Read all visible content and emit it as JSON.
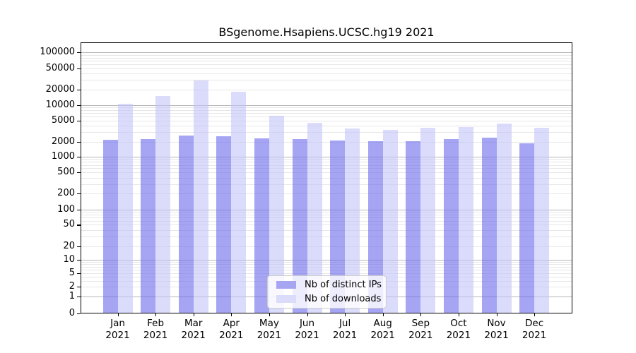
{
  "chart_data": {
    "type": "bar",
    "title": "BSgenome.Hsapiens.UCSC.hg19 2021",
    "year": "2021",
    "categories": [
      "Jan",
      "Feb",
      "Mar",
      "Apr",
      "May",
      "Jun",
      "Jul",
      "Aug",
      "Sep",
      "Oct",
      "Nov",
      "Dec"
    ],
    "series": [
      {
        "name": "Nb of distinct IPs",
        "color": "#a5a5f1",
        "bar_rgba": "rgba(105,105,235,0.6)",
        "values": [
          2180,
          2250,
          2630,
          2550,
          2290,
          2250,
          2100,
          2030,
          2030,
          2250,
          2340,
          1870
        ]
      },
      {
        "name": "Nb of downloads",
        "color": "#dbdbfa",
        "bar_rgba": "rgba(195,195,249,0.6)",
        "values": [
          10400,
          14700,
          29300,
          17800,
          6200,
          4500,
          3600,
          3300,
          3650,
          3800,
          4400,
          3650
        ]
      }
    ],
    "yticks": [
      0,
      1,
      2,
      5,
      10,
      20,
      50,
      100,
      200,
      500,
      1000,
      2000,
      5000,
      10000,
      20000,
      50000,
      100000
    ],
    "ylim": [
      0,
      100000
    ],
    "yscale": "log-like (0 at baseline)",
    "grid": "horizontal major and minor log gridlines",
    "legend_position": "lower center inside axes",
    "xlabel": "",
    "ylabel": ""
  },
  "colors": {
    "major_grid": "#b5b5b5",
    "minor_grid": "#e7e7e7",
    "axis": "#000000",
    "legend_border": "#cccccc",
    "legend_bg": "rgba(255,255,255,0.8)"
  }
}
